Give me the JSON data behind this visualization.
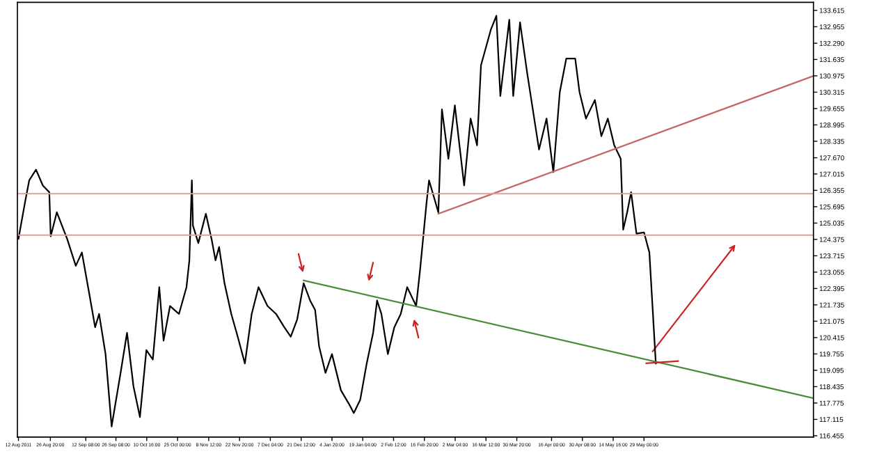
{
  "chart_data": {
    "type": "line",
    "x": [
      "2011-08-12T00:00",
      "2011-08-15T00:00",
      "2011-08-17T00:00",
      "2011-08-20T04:00",
      "2011-08-23T08:00",
      "2011-08-26T08:00",
      "2011-08-27T00:00",
      "2011-08-29T20:00",
      "2011-09-03T16:00",
      "2011-09-07T16:00",
      "2011-09-10T12:00",
      "2011-09-13T20:00",
      "2011-09-16T16:00",
      "2011-09-18T12:00",
      "2011-09-21T12:00",
      "2011-09-24T08:00",
      "2011-09-28T12:00",
      "2011-10-01T12:00",
      "2011-10-04T12:00",
      "2011-10-07T12:00",
      "2011-10-10T12:00",
      "2011-10-13T12:00",
      "2011-10-16T12:00",
      "2011-10-18T12:00",
      "2011-10-21T12:00",
      "2011-10-25T16:00",
      "2011-10-29T04:00",
      "2011-10-30T12:00",
      "2011-10-31T16:00",
      "2011-11-01T04:00",
      "2011-11-03T16:00",
      "2011-11-07T04:00",
      "2011-11-09T20:00",
      "2011-11-11T16:00",
      "2011-11-13T08:00",
      "2011-11-15T20:00",
      "2011-11-19T00:00",
      "2011-11-22T00:00",
      "2011-11-25T08:00",
      "2011-11-28T12:00",
      "2011-12-01T16:00",
      "2011-12-05T20:00",
      "2011-12-09T20:00",
      "2011-12-13T16:00",
      "2011-12-16T16:00",
      "2011-12-19T16:00",
      "2011-12-22T16:00",
      "2011-12-25T16:00",
      "2011-12-28T00:00",
      "2011-12-29T20:00",
      "2012-01-01T20:00",
      "2012-01-04T20:00",
      "2012-01-09T00:00",
      "2012-01-12T16:00",
      "2012-01-15T00:00",
      "2012-01-18T00:00",
      "2012-01-21T00:00",
      "2012-01-24T00:00",
      "2012-01-25T20:00",
      "2012-01-27T20:00",
      "2012-01-30T20:00",
      "2012-02-02T20:00",
      "2012-02-05T20:00",
      "2012-02-08T20:00",
      "2012-02-13T00:00",
      "2012-02-14T20:00",
      "2012-02-17T20:00",
      "2012-02-19T00:00",
      "2012-02-23T08:00",
      "2012-02-25T00:00",
      "2012-02-28T00:00",
      "2012-03-02T00:00",
      "2012-03-06T08:00",
      "2012-03-09T08:00",
      "2012-03-12T08:00",
      "2012-03-14T04:00",
      "2012-03-18T20:00",
      "2012-03-21T08:00",
      "2012-03-23T04:00",
      "2012-03-27T08:00",
      "2012-03-29T04:00",
      "2012-04-01T08:00",
      "2012-04-04T16:00",
      "2012-04-10T04:00",
      "2012-04-13T16:00",
      "2012-04-16T20:00",
      "2012-04-19T20:00",
      "2012-04-22T20:00",
      "2012-04-27T00:00",
      "2012-04-29T00:00",
      "2012-05-02T00:00",
      "2012-05-06T04:00",
      "2012-05-09T04:00",
      "2012-05-12T04:00",
      "2012-05-15T04:00",
      "2012-05-18T04:00",
      "2012-05-19T08:00",
      "2012-05-21T04:00",
      "2012-05-23T00:00",
      "2012-05-25T12:00",
      "2012-05-29T00:00",
      "2012-05-31T12:00",
      "2012-06-02T04:00",
      "2012-06-03T12:00"
    ],
    "series": [
      {
        "color": "#000000",
        "values": [
          124.4,
          125.85,
          126.76,
          127.19,
          126.55,
          126.28,
          124.5,
          125.47,
          124.39,
          123.31,
          123.85,
          122.23,
          120.83,
          121.37,
          119.75,
          116.83,
          118.99,
          120.61,
          118.45,
          117.21,
          119.91,
          119.53,
          122.45,
          120.29,
          121.69,
          121.37,
          122.45,
          123.53,
          126.76,
          124.93,
          124.23,
          125.41,
          124.39,
          123.53,
          124.07,
          122.61,
          121.37,
          120.45,
          119.37,
          121.37,
          122.45,
          121.69,
          121.37,
          120.83,
          120.45,
          121.15,
          122.61,
          121.91,
          121.53,
          120.07,
          118.99,
          119.75,
          118.29,
          117.75,
          117.37,
          117.91,
          119.37,
          120.61,
          121.91,
          121.37,
          119.75,
          120.83,
          121.37,
          122.45,
          121.69,
          123.15,
          125.85,
          126.76,
          125.47,
          129.62,
          127.63,
          129.78,
          126.55,
          129.25,
          128.17,
          131.4,
          132.86,
          133.4,
          130.16,
          133.24,
          130.16,
          133.13,
          131.08,
          128.0,
          129.25,
          127.09,
          130.32,
          131.67,
          131.67,
          130.32,
          129.25,
          130.0,
          128.54,
          129.25,
          128.17,
          127.63,
          124.77,
          125.47,
          126.28,
          124.61,
          124.66,
          123.85,
          121.37,
          119.37
        ]
      },
      {
        "type": "line",
        "color": "#4a8a3a",
        "x": [
          "2011-12-22T16:00",
          "2012-08-15T20:00"
        ],
        "values": [
          122.72,
          117.97
        ]
      },
      {
        "type": "line",
        "color": "#c86464",
        "x": [
          "2012-02-23T08:00",
          "2012-08-15T20:00"
        ],
        "values": [
          125.41,
          130.97
        ]
      }
    ],
    "ref_lines": [
      {
        "axis": "y",
        "value": 126.22,
        "color": "#d9a0a0"
      },
      {
        "axis": "y",
        "value": 124.55,
        "color": "#d9a0a0"
      }
    ],
    "xlim": [
      "2011-08-11T12:00",
      "2012-08-15T20:00"
    ],
    "xticks": [
      {
        "value": "2011-08-12T00:00",
        "label": "12 Aug 2011"
      },
      {
        "value": "2011-08-26T20:00",
        "label": "26 Aug 20:00"
      },
      {
        "value": "2011-09-12T08:00",
        "label": "12 Sep 08:00"
      },
      {
        "value": "2011-09-26T08:00",
        "label": "26 Sep 08:00"
      },
      {
        "value": "2011-10-10T16:00",
        "label": "10 Oct 16:00"
      },
      {
        "value": "2011-10-25T00:00",
        "label": "25 Oct 00:00"
      },
      {
        "value": "2011-11-08T12:00",
        "label": "8 Nov 12:00"
      },
      {
        "value": "2011-11-22T20:00",
        "label": "22 Nov 20:00"
      },
      {
        "value": "2011-12-07T04:00",
        "label": "7 Dec 04:00"
      },
      {
        "value": "2011-12-21T12:00",
        "label": "21 Dec 12:00"
      },
      {
        "value": "2012-01-04T20:00",
        "label": "4 Jan 20:00"
      },
      {
        "value": "2012-01-19T04:00",
        "label": "19 Jan 04:00"
      },
      {
        "value": "2012-02-02T12:00",
        "label": "2 Feb 12:00"
      },
      {
        "value": "2012-02-16T20:00",
        "label": "16 Feb 20:00"
      },
      {
        "value": "2012-03-02T04:00",
        "label": "2 Mar 04:00"
      },
      {
        "value": "2012-03-16T12:00",
        "label": "16 Mar 12:00"
      },
      {
        "value": "2012-03-30T20:00",
        "label": "30 Mar 20:00"
      },
      {
        "value": "2012-04-16T00:00",
        "label": "16 Apr 00:00"
      },
      {
        "value": "2012-04-30T08:00",
        "label": "30 Apr 08:00"
      },
      {
        "value": "2012-05-14T16:00",
        "label": "14 May 16:00"
      },
      {
        "value": "2012-05-29T00:00",
        "label": "29 May 00:00"
      }
    ],
    "ylim": [
      116.4,
      133.94
    ],
    "yticks": [
      {
        "value": 133.615,
        "label": "133.615"
      },
      {
        "value": 132.955,
        "label": "132.955"
      },
      {
        "value": 132.29,
        "label": "132.290"
      },
      {
        "value": 131.635,
        "label": "131.635"
      },
      {
        "value": 130.975,
        "label": "130.975"
      },
      {
        "value": 130.315,
        "label": "130.315"
      },
      {
        "value": 129.655,
        "label": "129.655"
      },
      {
        "value": 128.995,
        "label": "128.995"
      },
      {
        "value": 128.335,
        "label": "128.335"
      },
      {
        "value": 127.67,
        "label": "127.670"
      },
      {
        "value": 127.015,
        "label": "127.015"
      },
      {
        "value": 126.355,
        "label": "126.355"
      },
      {
        "value": 125.695,
        "label": "125.695"
      },
      {
        "value": 125.035,
        "label": "125.035"
      },
      {
        "value": 124.375,
        "label": "124.375"
      },
      {
        "value": 123.715,
        "label": "123.715"
      },
      {
        "value": 123.055,
        "label": "123.055"
      },
      {
        "value": 122.395,
        "label": "122.395"
      },
      {
        "value": 121.735,
        "label": "121.735"
      },
      {
        "value": 121.075,
        "label": "121.075"
      },
      {
        "value": 120.415,
        "label": "120.415"
      },
      {
        "value": 119.755,
        "label": "119.755"
      },
      {
        "value": 119.095,
        "label": "119.095"
      },
      {
        "value": 118.435,
        "label": "118.435"
      },
      {
        "value": 117.775,
        "label": "117.775"
      },
      {
        "value": 117.115,
        "label": "117.115"
      },
      {
        "value": 116.455,
        "label": "116.455"
      }
    ],
    "line_style": "solid"
  }
}
